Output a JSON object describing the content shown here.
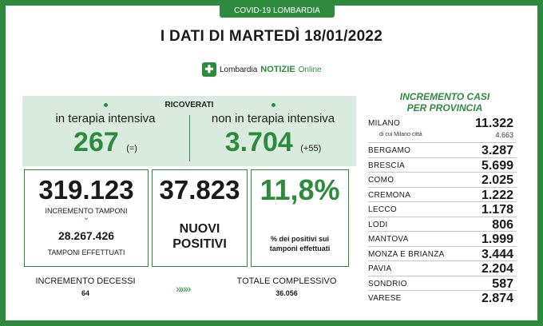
{
  "banner": "COVID-19 LOMBARDIA",
  "headline": "I DATI DI MARTEDÌ 18/01/2022",
  "logo": {
    "brand_prefix": "Lombardia",
    "brand": "NOTIZIE",
    "suffix": "Online"
  },
  "ricoverati": {
    "title": "RICOVERATI",
    "intensive_label": "in terapia intensiva",
    "intensive_value": "267",
    "intensive_delta": "(=)",
    "non_intensive_label": "non in terapia intensiva",
    "non_intensive_value": "3.704",
    "non_intensive_delta": "(+55)"
  },
  "tamponi": {
    "increment_value": "319.123",
    "increment_label": "INCREMENTO TAMPONI",
    "total_value": "28.267.426",
    "total_label": "TAMPONI EFFETTUATI"
  },
  "nuovi": {
    "value": "37.823",
    "label_line1": "NUOVI",
    "label_line2": "POSITIVI"
  },
  "percent": {
    "value": "11,8%",
    "note_line1": "% dei positivi sui",
    "note_line2": "tamponi effettuati"
  },
  "decessi": {
    "label": "INCREMENTO DECESSI",
    "value": "64"
  },
  "totale": {
    "label": "TOTALE COMPLESSIVO",
    "value": "36.056"
  },
  "province": {
    "title_line1": "INCREMENTO CASI",
    "title_line2": "PER PROVINCIA",
    "milano": {
      "name": "MILANO",
      "value": "11.322",
      "city_label": "di cui Milano città",
      "city_value": "4.663"
    },
    "items": [
      {
        "name": "BERGAMO",
        "value": "3.287"
      },
      {
        "name": "BRESCIA",
        "value": "5.699"
      },
      {
        "name": "COMO",
        "value": "2.025"
      },
      {
        "name": "CREMONA",
        "value": "1.222"
      },
      {
        "name": "LECCO",
        "value": "1.178"
      },
      {
        "name": "LODI",
        "value": "806"
      },
      {
        "name": "MANTOVA",
        "value": "1.999"
      },
      {
        "name": "MONZA E BRIANZA",
        "value": "3.444"
      },
      {
        "name": "PAVIA",
        "value": "2.204"
      },
      {
        "name": "SONDRIO",
        "value": "587"
      },
      {
        "name": "VARESE",
        "value": "2.874"
      }
    ]
  },
  "colors": {
    "accent": "#2e8b3e",
    "panel": "#d9ebdf"
  }
}
